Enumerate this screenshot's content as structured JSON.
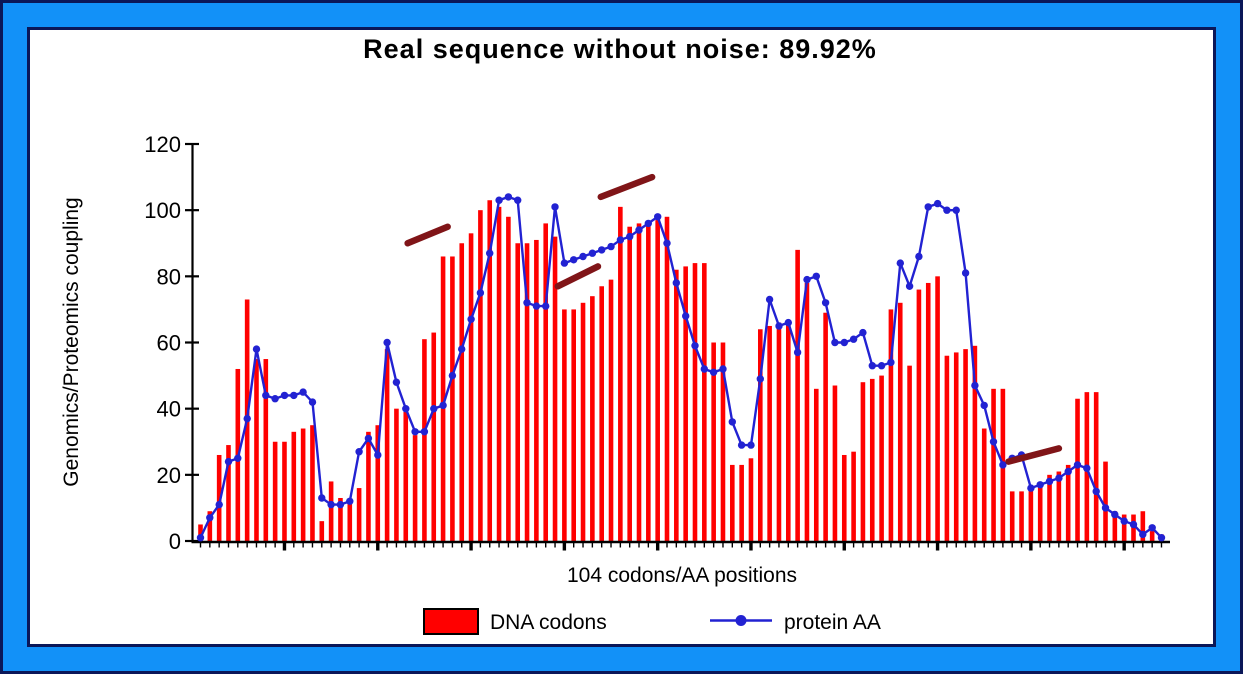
{
  "title": "Real sequence without noise: 89.92%",
  "colors": {
    "frame_outer": "#0b1758",
    "frame_blue": "#1291f8",
    "panel_bg": "#ffffff",
    "panel_border": "#0b1758",
    "bar": "#ff0000",
    "line": "#2222d2",
    "annotation": "#801518",
    "axis": "#000000"
  },
  "chart_data": {
    "type": "bar+line combo",
    "title": "Real sequence without noise: 89.92%",
    "xlabel": "104 codons/AA positions",
    "ylabel": "Genomics/Proteomics coupling",
    "ylim": [
      0,
      120
    ],
    "yticks": [
      0,
      20,
      40,
      60,
      80,
      100,
      120
    ],
    "n_positions": 104,
    "grid": false,
    "x_tick_style": "small tick per position, bold tick every 10th",
    "legend_position": "bottom center",
    "series": [
      {
        "name": "DNA codons",
        "type": "bar",
        "color": "#ff0000",
        "values": [
          5,
          9,
          26,
          29,
          52,
          73,
          55,
          55,
          30,
          30,
          33,
          34,
          35,
          6,
          18,
          13,
          12,
          16,
          33,
          35,
          58,
          40,
          39,
          32,
          61,
          63,
          86,
          86,
          90,
          93,
          100,
          103,
          101,
          98,
          90,
          90,
          91,
          96,
          92,
          70,
          70,
          72,
          74,
          77,
          79,
          101,
          95,
          96,
          96,
          97,
          98,
          82,
          83,
          84,
          84,
          60,
          60,
          23,
          23,
          25,
          64,
          65,
          66,
          66,
          88,
          78,
          46,
          69,
          47,
          26,
          27,
          48,
          49,
          50,
          70,
          72,
          53,
          76,
          78,
          80,
          56,
          57,
          58,
          59,
          34,
          46,
          46,
          15,
          15,
          16,
          17,
          20,
          21,
          23,
          43,
          45,
          45,
          24,
          9,
          8,
          8,
          9,
          3,
          2
        ]
      },
      {
        "name": "protein AA",
        "type": "line",
        "color": "#2222d2",
        "marker": "circle",
        "values": [
          1,
          7,
          11,
          24,
          25,
          37,
          58,
          44,
          43,
          44,
          44,
          45,
          42,
          13,
          11,
          11,
          12,
          27,
          31,
          26,
          60,
          48,
          40,
          33,
          33,
          40,
          41,
          50,
          58,
          67,
          75,
          87,
          103,
          104,
          103,
          72,
          71,
          71,
          101,
          84,
          85,
          86,
          87,
          88,
          89,
          91,
          92,
          94,
          96,
          98,
          90,
          78,
          68,
          59,
          52,
          51,
          52,
          36,
          29,
          29,
          49,
          73,
          65,
          66,
          57,
          79,
          80,
          72,
          60,
          60,
          61,
          63,
          53,
          53,
          54,
          84,
          77,
          86,
          101,
          102,
          100,
          100,
          81,
          47,
          41,
          30,
          23,
          25,
          26,
          16,
          17,
          18,
          19,
          21,
          23,
          22,
          15,
          10,
          8,
          6,
          5,
          2,
          4,
          1
        ]
      }
    ],
    "annotations": {
      "style": "short thick diagonal dashes above data",
      "color": "#801518",
      "segments": [
        {
          "x1": 23.2,
          "y1": 90,
          "x2": 27.5,
          "y2": 95
        },
        {
          "x1": 39.3,
          "y1": 77,
          "x2": 43.6,
          "y2": 83
        },
        {
          "x1": 43.9,
          "y1": 104,
          "x2": 49.4,
          "y2": 110
        },
        {
          "x1": 87.6,
          "y1": 24,
          "x2": 93.0,
          "y2": 28
        }
      ]
    },
    "legend": [
      {
        "label": "DNA codons",
        "swatch": "red rectangle"
      },
      {
        "label": "protein AA",
        "swatch": "blue line with dot"
      }
    ]
  }
}
